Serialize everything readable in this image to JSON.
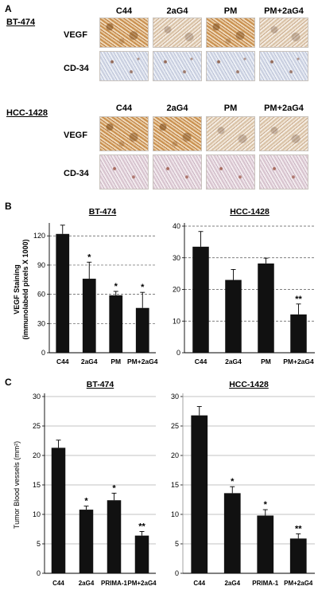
{
  "panel_a": {
    "letter": "A",
    "groups": [
      {
        "title": "BT-474",
        "columns": [
          "C44",
          "2aG4",
          "PM",
          "PM+2aG4"
        ],
        "rows": [
          "VEGF",
          "CD-34"
        ]
      },
      {
        "title": "HCC-1428",
        "columns": [
          "C44",
          "2aG4",
          "PM",
          "PM+2aG4"
        ],
        "rows": [
          "VEGF",
          "CD-34"
        ]
      }
    ]
  },
  "panel_b_letter": "B",
  "panel_c_letter": "C",
  "chart_data": [
    {
      "type": "bar",
      "title": "BT-474",
      "ylabel": "VEGF Staining (immunolabeld pixels X 1000)",
      "ylabel_line1": "VEGF Staining",
      "ylabel_line2": "(immunolabeld pixels X 1000)",
      "categories": [
        "C44",
        "2aG4",
        "PM",
        "PM+2aG4"
      ],
      "values": [
        122,
        76,
        59,
        46
      ],
      "errors": [
        9,
        17,
        4,
        16
      ],
      "annotations": [
        "",
        "*",
        "*",
        "*"
      ],
      "ylim": [
        0,
        130
      ],
      "yticks": [
        0,
        30,
        60,
        90,
        120
      ],
      "grid": true,
      "bar_color": "#111111"
    },
    {
      "type": "bar",
      "title": "HCC-1428",
      "categories": [
        "C44",
        "2aG4",
        "PM",
        "PM+2aG4"
      ],
      "values": [
        33.5,
        23,
        28.2,
        12.1
      ],
      "errors": [
        4.8,
        3.3,
        1.7,
        3.3
      ],
      "annotations": [
        "",
        "",
        "",
        "**"
      ],
      "ylim": [
        0,
        40
      ],
      "yticks": [
        0,
        10,
        20,
        30,
        40
      ],
      "grid": true,
      "bar_color": "#111111"
    },
    {
      "type": "bar",
      "title": "BT-474",
      "ylabel": "Tumor Blood vessels (mm²)",
      "categories": [
        "C44",
        "2aG4",
        "PRIMA-1",
        "PM+2aG4"
      ],
      "values": [
        21.3,
        10.8,
        12.4,
        6.4
      ],
      "errors": [
        1.3,
        0.6,
        1.2,
        0.7
      ],
      "annotations": [
        "",
        "*",
        "*",
        "**"
      ],
      "ylim": [
        0,
        30
      ],
      "yticks": [
        0,
        5,
        10,
        15,
        20,
        25,
        30
      ],
      "grid": true,
      "bar_color": "#111111"
    },
    {
      "type": "bar",
      "title": "HCC-1428",
      "categories": [
        "C44",
        "2aG4",
        "PRIMA-1",
        "PM+2aG4"
      ],
      "values": [
        26.8,
        13.6,
        9.8,
        5.9
      ],
      "errors": [
        1.5,
        1.1,
        1.0,
        0.8
      ],
      "annotations": [
        "",
        "*",
        "*",
        "**"
      ],
      "ylim": [
        0,
        30
      ],
      "yticks": [
        0,
        5,
        10,
        15,
        20,
        25,
        30
      ],
      "grid": true,
      "bar_color": "#111111"
    }
  ]
}
